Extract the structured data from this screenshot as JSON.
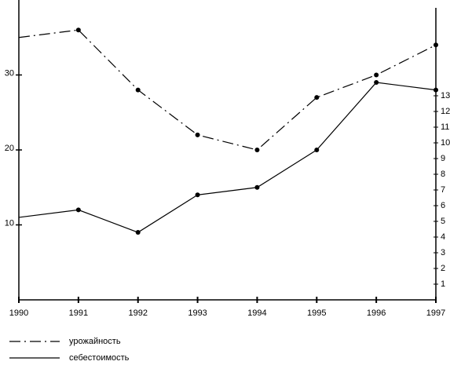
{
  "chart_data": {
    "type": "line",
    "x": [
      1990,
      1991,
      1992,
      1993,
      1994,
      1995,
      1996,
      1997
    ],
    "xlim": [
      1990,
      1997
    ],
    "xticks": [
      1990,
      1991,
      1992,
      1993,
      1994,
      1995,
      1996,
      1997
    ],
    "ylim": [
      0,
      40
    ],
    "yticks": [
      10,
      20,
      30
    ],
    "y2lim": [
      0,
      18.6
    ],
    "y2ticks": [
      1,
      2,
      3,
      4,
      5,
      6,
      7,
      8,
      9,
      10,
      11,
      12,
      13
    ],
    "series": [
      {
        "name": "урожайность",
        "color": "#000000",
        "dash": "dashdot",
        "values": [
          35,
          36,
          28,
          22,
          20,
          27,
          30,
          34
        ]
      },
      {
        "name": "себестоимость",
        "color": "#000000",
        "dash": "solid",
        "values": [
          11,
          12,
          9,
          14,
          15,
          20,
          29,
          28
        ]
      }
    ]
  }
}
